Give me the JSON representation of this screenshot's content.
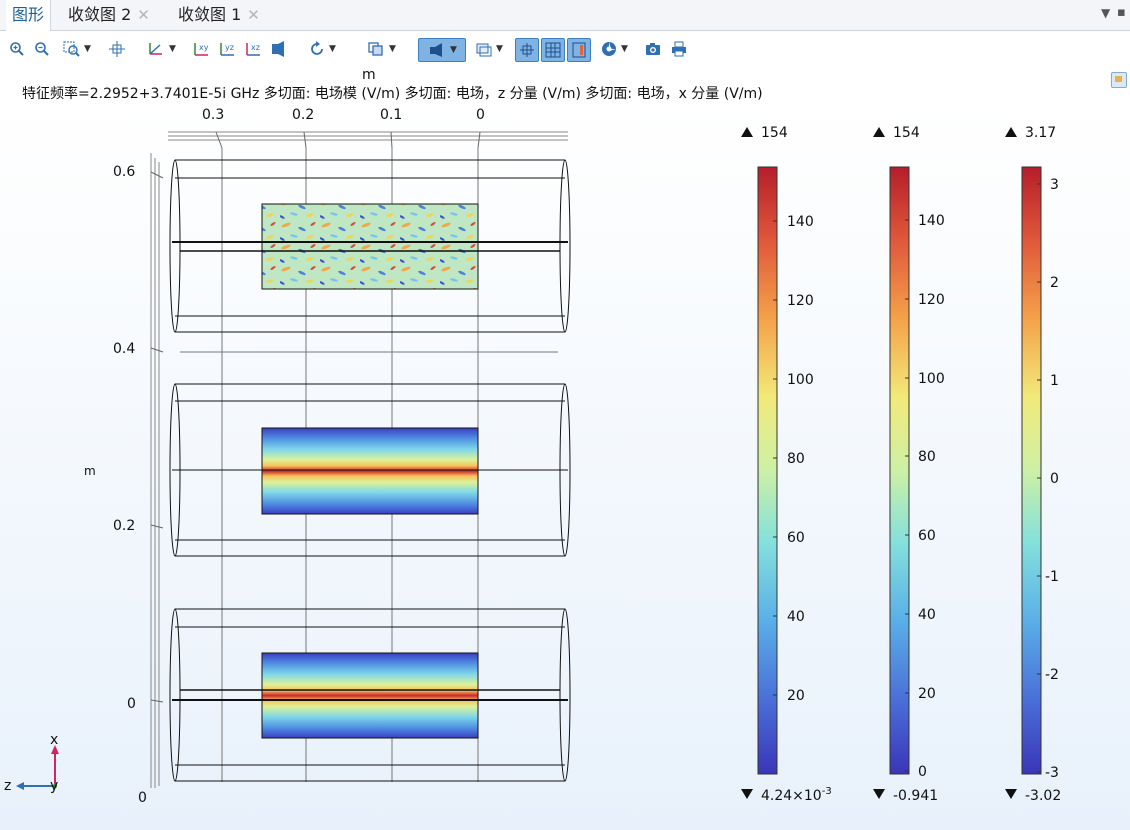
{
  "tabs": [
    {
      "label": "图形",
      "active": true,
      "closable": false
    },
    {
      "label": "收敛图 2",
      "active": false,
      "closable": true
    },
    {
      "label": "收敛图 1",
      "active": false,
      "closable": true
    }
  ],
  "tab_close_glyph": "✕",
  "plot_title": "特征频率=2.2952+3.7401E-5i GHz   多切面: 电场模 (V/m)  多切面: 电场，z 分量 (V/m)  多切面: 电场，x 分量 (V/m)",
  "axes": {
    "top_unit": "m",
    "top_ticks": [
      "0.3",
      "0.2",
      "0.1",
      "0"
    ],
    "left_unit": "m",
    "left_ticks": [
      "0.6",
      "0.4",
      "0.2",
      "0"
    ],
    "origin_label": "0",
    "triad": {
      "x": "x",
      "y": "y",
      "z": "z"
    }
  },
  "colorbars": [
    {
      "max_label": "154",
      "min_label": "4.24×10",
      "min_exp": "-3",
      "ticks": [
        "140",
        "120",
        "100",
        "80",
        "60",
        "40",
        "20"
      ]
    },
    {
      "max_label": "154",
      "min_label": "-0.941",
      "min_exp": "",
      "ticks": [
        "140",
        "120",
        "100",
        "80",
        "60",
        "40",
        "20",
        "0"
      ]
    },
    {
      "max_label": "3.17",
      "min_label": "-3.02",
      "min_exp": "",
      "ticks": [
        "3",
        "2",
        "1",
        "0",
        "-1",
        "-2",
        "-3"
      ]
    }
  ],
  "colors": {
    "tab_active": "#1f5f9c",
    "toolbar_icon": "#2f6fb3",
    "toolbar_selected": "#7fb3e3",
    "triad_x": "#d0245e",
    "triad_z": "#2f6fb3",
    "triad_y": "#2e8b2e"
  }
}
